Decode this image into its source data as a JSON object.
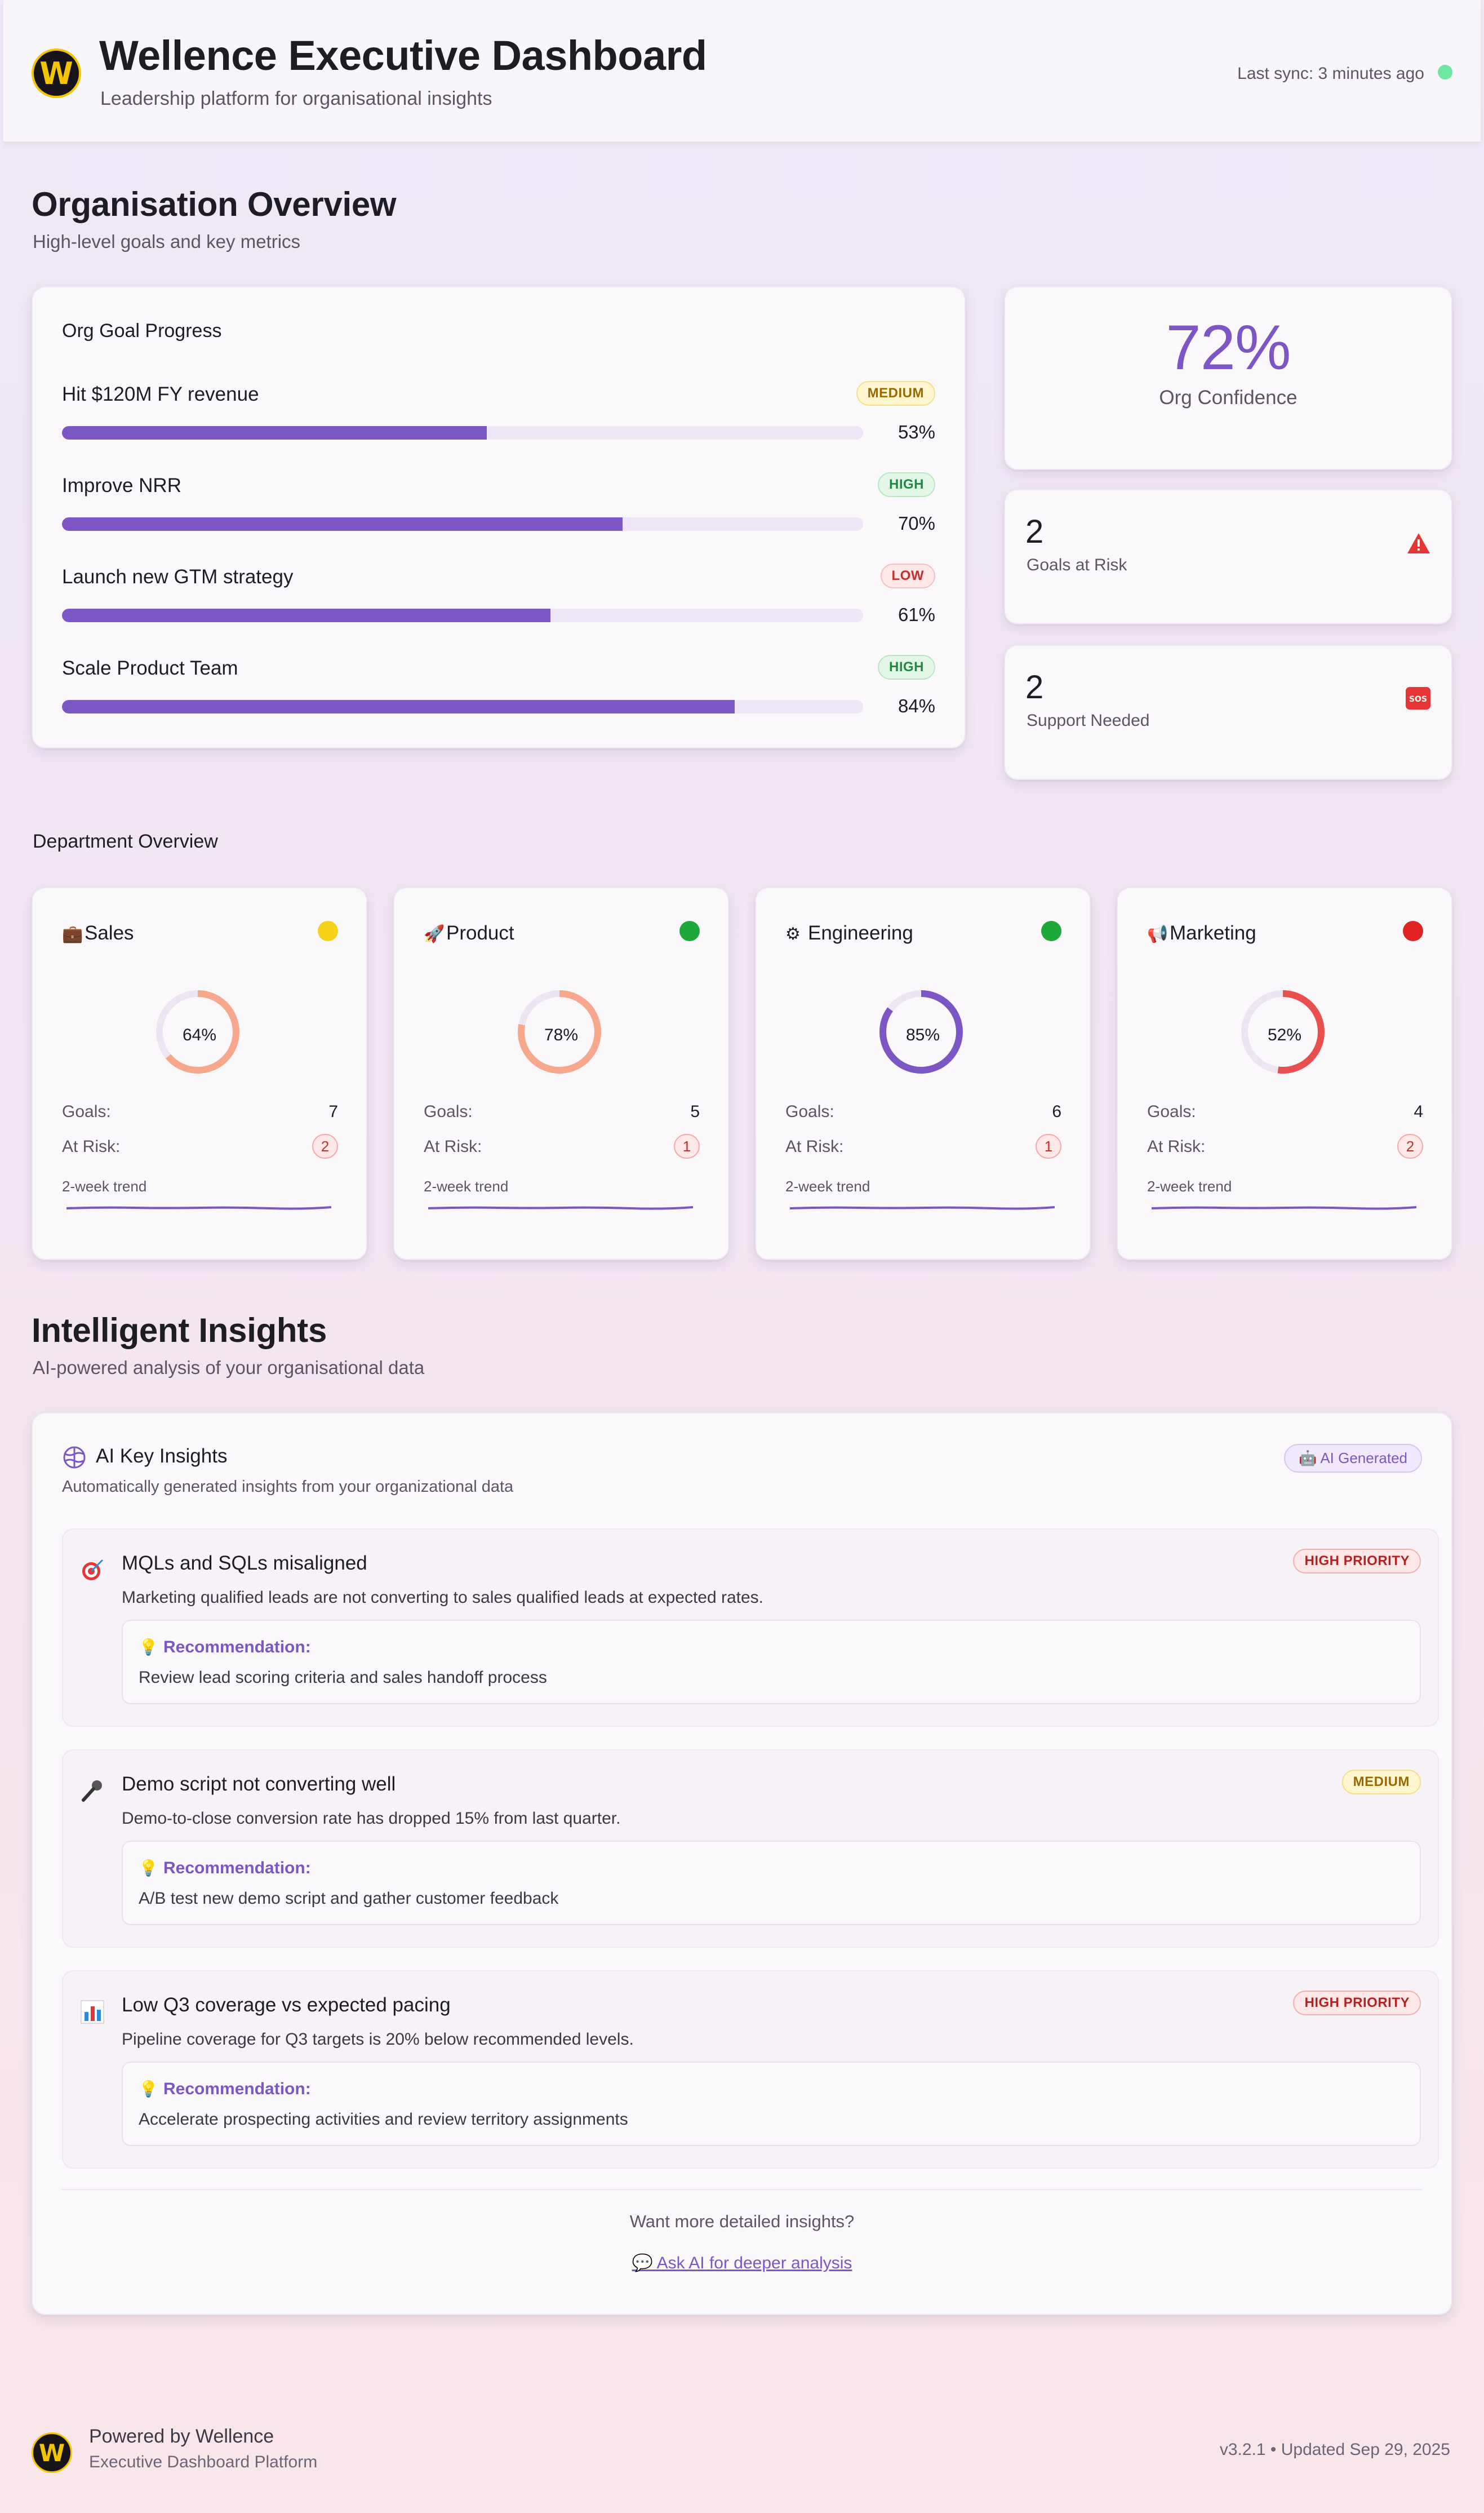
{
  "header": {
    "logo_letter": "W",
    "title": "Wellence Executive Dashboard",
    "subtitle": "Leadership platform for organisational insights",
    "last_sync": "Last sync: 3 minutes ago",
    "sync_status_color": "#6ee7a0"
  },
  "overview": {
    "title": "Organisation Overview",
    "subtitle": "High-level goals and key metrics",
    "goal_card_title": "Org Goal Progress",
    "goals": [
      {
        "name": "Hit $120M FY revenue",
        "priority": "MEDIUM",
        "progress": 53,
        "progress_label": "53%"
      },
      {
        "name": "Improve NRR",
        "priority": "HIGH",
        "progress": 70,
        "progress_label": "70%"
      },
      {
        "name": "Launch new GTM strategy",
        "priority": "LOW",
        "progress": 61,
        "progress_label": "61%"
      },
      {
        "name": "Scale Product Team",
        "priority": "HIGH",
        "progress": 84,
        "progress_label": "84%"
      }
    ],
    "confidence": {
      "value": "72%",
      "label": "Org Confidence"
    },
    "goals_at_risk": {
      "value": "2",
      "label": "Goals at Risk",
      "icon": "warning-icon"
    },
    "support_needed": {
      "value": "2",
      "label": "Support Needed",
      "icon": "sos-icon"
    }
  },
  "departments": {
    "title": "Department Overview",
    "goals_label": "Goals:",
    "risk_label": "At Risk:",
    "trend_label": "2-week trend",
    "items": [
      {
        "name": "Sales",
        "icon": "briefcase-icon",
        "status": "yellow",
        "status_color": "#f7d21a",
        "score": 64,
        "score_label": "64%",
        "ring_color": "#f6a78c",
        "goals": "7",
        "at_risk": "2"
      },
      {
        "name": "Product",
        "icon": "rocket-icon",
        "status": "green",
        "status_color": "#1fa83a",
        "score": 78,
        "score_label": "78%",
        "ring_color": "#f6a78c",
        "goals": "5",
        "at_risk": "1"
      },
      {
        "name": "Engineering",
        "icon": "gear-icon",
        "status": "green",
        "status_color": "#1fa83a",
        "score": 85,
        "score_label": "85%",
        "ring_color": "#7c56c4",
        "goals": "6",
        "at_risk": "1"
      },
      {
        "name": "Marketing",
        "icon": "megaphone-icon",
        "status": "red",
        "status_color": "#e02424",
        "score": 52,
        "score_label": "52%",
        "ring_color": "#e85050",
        "goals": "4",
        "at_risk": "2"
      }
    ]
  },
  "insights": {
    "title": "Intelligent Insights",
    "subtitle": "AI-powered analysis of your organisational data",
    "card_title": "AI Key Insights",
    "card_subtitle": "Automatically generated insights from your organizational data",
    "ai_badge": "🤖 AI Generated",
    "recommendation_label": "Recommendation:",
    "items": [
      {
        "icon": "target-icon",
        "title": "MQLs and SQLs misaligned",
        "priority": "HIGH PRIORITY",
        "description": "Marketing qualified leads are not converting to sales qualified leads at expected rates.",
        "recommendation": "Review lead scoring criteria and sales handoff process"
      },
      {
        "icon": "microphone-icon",
        "title": "Demo script not converting well",
        "priority": "MEDIUM",
        "description": "Demo-to-close conversion rate has dropped 15% from last quarter.",
        "recommendation": "A/B test new demo script and gather customer feedback"
      },
      {
        "icon": "bar-chart-icon",
        "title": "Low Q3 coverage vs expected pacing",
        "priority": "HIGH PRIORITY",
        "description": "Pipeline coverage for Q3 targets is 20% below recommended levels.",
        "recommendation": "Accelerate prospecting activities and review territory assignments"
      }
    ],
    "more_question": "Want more detailed insights?",
    "more_link": "💬 Ask AI for deeper analysis"
  },
  "footer": {
    "logo_letter": "W",
    "title": "Powered by Wellence",
    "subtitle": "Executive Dashboard Platform",
    "version": "v3.2.1 • Updated Sep 29, 2025"
  },
  "colors": {
    "accent": "#7c56c4",
    "track": "#efe7f8"
  }
}
